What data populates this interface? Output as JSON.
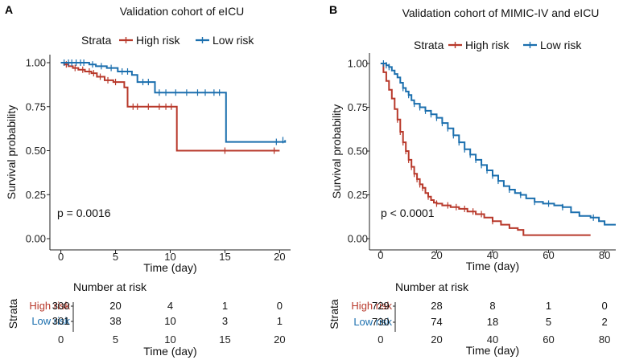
{
  "colors": {
    "high": "#B8392B",
    "low": "#1B6FAE"
  },
  "chart_data": [
    {
      "type": "line",
      "panel_letter": "A",
      "title": "Validation cohort of eICU",
      "legend_title": "Strata",
      "legend_labels": [
        "High risk",
        "Low risk"
      ],
      "xlabel": "Time (day)",
      "ylabel": "Survival probability",
      "xlim": [
        -1,
        21
      ],
      "ylim": [
        0,
        1
      ],
      "xticks": [
        0,
        5,
        10,
        15,
        20
      ],
      "xtick_labels": [
        "0",
        "5",
        "10",
        "15",
        "20"
      ],
      "yticks": [
        0,
        0.25,
        0.5,
        0.75,
        1
      ],
      "ytick_labels": [
        "0.00",
        "0.25",
        "0.50",
        "0.75",
        "1.00"
      ],
      "pvalue": "p = 0.0016",
      "series": [
        {
          "name": "High risk",
          "color_key": "high",
          "steps": [
            [
              0,
              1.0
            ],
            [
              0.3,
              0.99
            ],
            [
              0.7,
              0.98
            ],
            [
              1.1,
              0.97
            ],
            [
              1.6,
              0.96
            ],
            [
              2.2,
              0.95
            ],
            [
              2.8,
              0.94
            ],
            [
              3.3,
              0.92
            ],
            [
              4.0,
              0.9
            ],
            [
              4.8,
              0.89
            ],
            [
              5.8,
              0.86
            ],
            [
              6.1,
              0.75
            ],
            [
              10.6,
              0.5
            ],
            [
              20.0,
              0.5
            ]
          ],
          "censor": [
            [
              0.5,
              0.99
            ],
            [
              1.3,
              0.97
            ],
            [
              2.0,
              0.96
            ],
            [
              2.6,
              0.95
            ],
            [
              3.0,
              0.94
            ],
            [
              3.6,
              0.92
            ],
            [
              4.3,
              0.9
            ],
            [
              5.0,
              0.89
            ],
            [
              6.6,
              0.75
            ],
            [
              7.0,
              0.75
            ],
            [
              8.0,
              0.75
            ],
            [
              9.0,
              0.75
            ],
            [
              9.6,
              0.75
            ],
            [
              10.1,
              0.75
            ],
            [
              15.0,
              0.5
            ],
            [
              19.5,
              0.5
            ]
          ]
        },
        {
          "name": "Low risk",
          "color_key": "low",
          "steps": [
            [
              0,
              1.0
            ],
            [
              2.6,
              0.99
            ],
            [
              3.2,
              0.98
            ],
            [
              4.2,
              0.97
            ],
            [
              5.2,
              0.95
            ],
            [
              6.5,
              0.93
            ],
            [
              7.0,
              0.89
            ],
            [
              8.2,
              0.89
            ],
            [
              8.6,
              0.83
            ],
            [
              15.1,
              0.55
            ],
            [
              20.5,
              0.56
            ]
          ],
          "censor": [
            [
              0.3,
              1.0
            ],
            [
              0.7,
              1.0
            ],
            [
              1.0,
              1.0
            ],
            [
              1.4,
              1.0
            ],
            [
              1.8,
              1.0
            ],
            [
              2.1,
              1.0
            ],
            [
              2.9,
              0.99
            ],
            [
              3.7,
              0.98
            ],
            [
              4.6,
              0.97
            ],
            [
              5.6,
              0.95
            ],
            [
              6.1,
              0.95
            ],
            [
              7.5,
              0.89
            ],
            [
              8.0,
              0.89
            ],
            [
              9.0,
              0.83
            ],
            [
              9.6,
              0.83
            ],
            [
              10.5,
              0.83
            ],
            [
              11.5,
              0.83
            ],
            [
              12.5,
              0.83
            ],
            [
              13.2,
              0.83
            ],
            [
              14.0,
              0.83
            ],
            [
              14.5,
              0.83
            ],
            [
              19.7,
              0.55
            ],
            [
              20.3,
              0.56
            ]
          ]
        }
      ],
      "risk_table": {
        "title": "Number at risk",
        "strata_label": "Strata",
        "xlabel": "Time (day)",
        "time_points": [
          0,
          5,
          10,
          15,
          20
        ],
        "rows": [
          {
            "label": "High risk",
            "color_key": "high",
            "values": [
              "300",
              "20",
              "4",
              "1",
              "0"
            ]
          },
          {
            "label": "Low risk",
            "color_key": "low",
            "values": [
              "301",
              "38",
              "10",
              "3",
              "1"
            ]
          }
        ]
      }
    },
    {
      "type": "line",
      "panel_letter": "B",
      "title": "Validation cohort of MIMIC-IV and eICU",
      "legend_title": "Strata",
      "legend_labels": [
        "High risk",
        "Low risk"
      ],
      "xlabel": "Time (day)",
      "ylabel": "Survival probability",
      "xlim": [
        -4,
        84
      ],
      "ylim": [
        0,
        1
      ],
      "xticks": [
        0,
        20,
        40,
        60,
        80
      ],
      "xtick_labels": [
        "0",
        "20",
        "40",
        "60",
        "80"
      ],
      "yticks": [
        0,
        0.25,
        0.5,
        0.75,
        1
      ],
      "ytick_labels": [
        "0.00",
        "0.25",
        "0.50",
        "0.75",
        "1.00"
      ],
      "pvalue": "p < 0.0001",
      "series": [
        {
          "name": "High risk",
          "color_key": "high",
          "steps": [
            [
              0,
              1.0
            ],
            [
              1,
              0.95
            ],
            [
              2,
              0.9
            ],
            [
              3,
              0.85
            ],
            [
              4,
              0.8
            ],
            [
              5,
              0.74
            ],
            [
              6,
              0.68
            ],
            [
              7,
              0.61
            ],
            [
              8,
              0.55
            ],
            [
              9,
              0.5
            ],
            [
              10,
              0.45
            ],
            [
              11,
              0.41
            ],
            [
              12,
              0.37
            ],
            [
              13,
              0.34
            ],
            [
              14,
              0.31
            ],
            [
              15,
              0.29
            ],
            [
              16,
              0.26
            ],
            [
              17,
              0.24
            ],
            [
              18,
              0.22
            ],
            [
              19,
              0.205
            ],
            [
              20,
              0.2
            ],
            [
              22,
              0.19
            ],
            [
              25,
              0.18
            ],
            [
              28,
              0.17
            ],
            [
              31,
              0.155
            ],
            [
              34,
              0.14
            ],
            [
              37,
              0.12
            ],
            [
              40,
              0.1
            ],
            [
              43,
              0.08
            ],
            [
              46,
              0.06
            ],
            [
              49,
              0.05
            ],
            [
              51,
              0.02
            ],
            [
              75,
              0.02
            ]
          ],
          "censor": [
            [
              6,
              0.68
            ],
            [
              7,
              0.61
            ],
            [
              8,
              0.55
            ],
            [
              9,
              0.5
            ],
            [
              10,
              0.45
            ],
            [
              11,
              0.41
            ],
            [
              12,
              0.37
            ],
            [
              13,
              0.34
            ],
            [
              14,
              0.31
            ],
            [
              15,
              0.29
            ],
            [
              17,
              0.24
            ],
            [
              20,
              0.2
            ],
            [
              24,
              0.19
            ],
            [
              27,
              0.18
            ],
            [
              30,
              0.17
            ],
            [
              33,
              0.155
            ],
            [
              36,
              0.14
            ],
            [
              40,
              0.1
            ]
          ]
        },
        {
          "name": "Low risk",
          "color_key": "low",
          "steps": [
            [
              0,
              1.0
            ],
            [
              2,
              0.99
            ],
            [
              3,
              0.98
            ],
            [
              4,
              0.96
            ],
            [
              5,
              0.94
            ],
            [
              6,
              0.92
            ],
            [
              7,
              0.89
            ],
            [
              8,
              0.86
            ],
            [
              9,
              0.84
            ],
            [
              10,
              0.82
            ],
            [
              11,
              0.79
            ],
            [
              12,
              0.77
            ],
            [
              14,
              0.75
            ],
            [
              16,
              0.73
            ],
            [
              18,
              0.71
            ],
            [
              20,
              0.69
            ],
            [
              22,
              0.66
            ],
            [
              24,
              0.63
            ],
            [
              26,
              0.59
            ],
            [
              28,
              0.55
            ],
            [
              30,
              0.51
            ],
            [
              32,
              0.48
            ],
            [
              34,
              0.45
            ],
            [
              36,
              0.42
            ],
            [
              38,
              0.39
            ],
            [
              40,
              0.36
            ],
            [
              42,
              0.33
            ],
            [
              44,
              0.3
            ],
            [
              46,
              0.28
            ],
            [
              48,
              0.26
            ],
            [
              50,
              0.25
            ],
            [
              52,
              0.23
            ],
            [
              55,
              0.21
            ],
            [
              58,
              0.2
            ],
            [
              62,
              0.19
            ],
            [
              65,
              0.18
            ],
            [
              68,
              0.15
            ],
            [
              71,
              0.13
            ],
            [
              75,
              0.12
            ],
            [
              78,
              0.1
            ],
            [
              80,
              0.08
            ],
            [
              84,
              0.08
            ]
          ],
          "censor": [
            [
              1,
              1.0
            ],
            [
              2,
              0.99
            ],
            [
              3,
              0.98
            ],
            [
              8,
              0.86
            ],
            [
              10,
              0.82
            ],
            [
              12,
              0.77
            ],
            [
              14,
              0.75
            ],
            [
              16,
              0.73
            ],
            [
              18,
              0.71
            ],
            [
              20,
              0.69
            ],
            [
              22,
              0.66
            ],
            [
              24,
              0.63
            ],
            [
              26,
              0.59
            ],
            [
              28,
              0.55
            ],
            [
              30,
              0.51
            ],
            [
              32,
              0.48
            ],
            [
              34,
              0.45
            ],
            [
              36,
              0.42
            ],
            [
              38,
              0.39
            ],
            [
              40,
              0.36
            ],
            [
              42,
              0.33
            ],
            [
              46,
              0.28
            ],
            [
              50,
              0.25
            ],
            [
              55,
              0.21
            ],
            [
              60,
              0.2
            ],
            [
              65,
              0.18
            ],
            [
              76,
              0.12
            ]
          ]
        }
      ],
      "risk_table": {
        "title": "Number at risk",
        "strata_label": "Strata",
        "xlabel": "Time (day)",
        "time_points": [
          0,
          20,
          40,
          60,
          80
        ],
        "rows": [
          {
            "label": "High risk",
            "color_key": "high",
            "values": [
              "729",
              "28",
              "8",
              "1",
              "0"
            ]
          },
          {
            "label": "Low risk",
            "color_key": "low",
            "values": [
              "730",
              "74",
              "18",
              "5",
              "2"
            ]
          }
        ]
      }
    }
  ]
}
